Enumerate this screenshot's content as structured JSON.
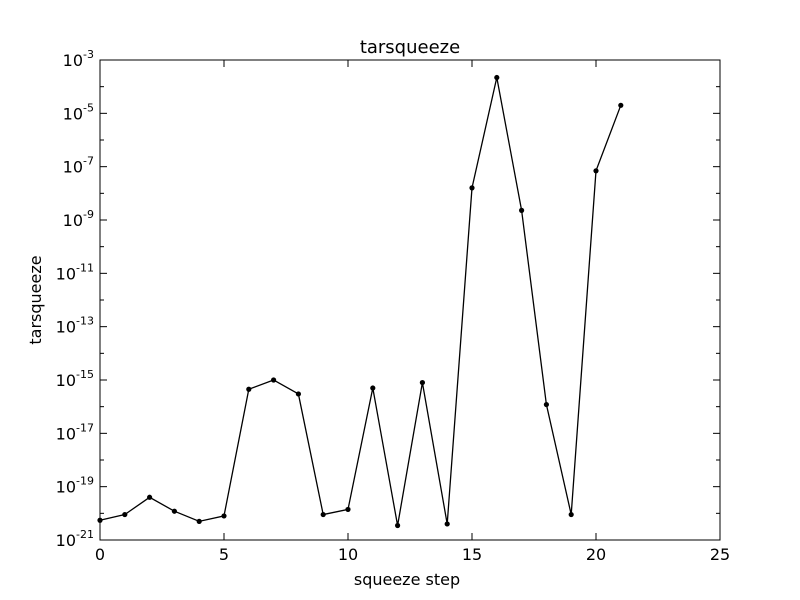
{
  "chart_data": {
    "type": "line",
    "title": "tarsqueeze",
    "xlabel": "squeeze step",
    "ylabel": "tarsqueeze",
    "xlim": [
      0,
      25
    ],
    "ylim": [
      1e-21,
      0.001
    ],
    "yscale": "log",
    "grid": false,
    "x_ticks": [
      0,
      5,
      10,
      15,
      20,
      25
    ],
    "x_tick_labels": [
      "0",
      "5",
      "10",
      "15",
      "20",
      "25"
    ],
    "y_ticks": [
      1e-21,
      1e-19,
      1e-17,
      1e-15,
      1e-13,
      1e-11,
      1e-09,
      1e-07,
      1e-05,
      0.001
    ],
    "y_tick_labels": [
      {
        "base": "10",
        "exp": "-21"
      },
      {
        "base": "10",
        "exp": "-19"
      },
      {
        "base": "10",
        "exp": "-17"
      },
      {
        "base": "10",
        "exp": "-15"
      },
      {
        "base": "10",
        "exp": "-13"
      },
      {
        "base": "10",
        "exp": "-11"
      },
      {
        "base": "10",
        "exp": "-9"
      },
      {
        "base": "10",
        "exp": "-7"
      },
      {
        "base": "10",
        "exp": "-5"
      },
      {
        "base": "10",
        "exp": "-3"
      }
    ],
    "line_color": "#000000",
    "marker": "dot",
    "series": [
      {
        "x": [
          0,
          1,
          2,
          3,
          4,
          5,
          6,
          7,
          8,
          9,
          10,
          11,
          12,
          13,
          14,
          15,
          16,
          17,
          18,
          19,
          20,
          21
        ],
        "values": [
          5.5e-21,
          9e-21,
          4e-20,
          1.2e-20,
          5e-21,
          8e-21,
          4.5e-16,
          1e-15,
          3e-16,
          9e-21,
          1.4e-20,
          5e-16,
          3.5e-21,
          8e-16,
          4e-21,
          1.6e-08,
          0.00022,
          2.3e-09,
          1.2e-16,
          9e-21,
          7e-08,
          2e-05
        ]
      }
    ]
  }
}
